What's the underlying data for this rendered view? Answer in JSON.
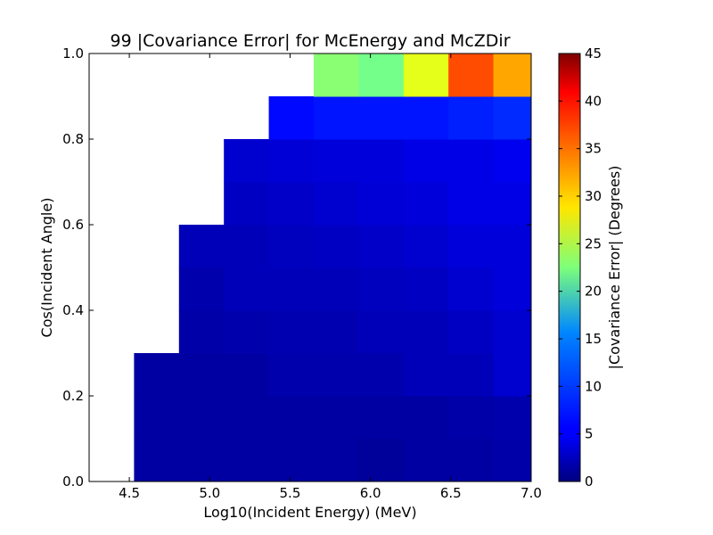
{
  "chart_data": {
    "type": "heatmap",
    "title": "99 |Covariance Error| for McEnergy and McZDir",
    "xlabel": "Log10(Incident Energy) (MeV)",
    "ylabel": "Cos(Incident Angle)",
    "colorbar_label": "|Covariance Error| (Degrees)",
    "colormap": "jet",
    "xlim": [
      4.25,
      7.0
    ],
    "ylim": [
      0.0,
      1.0
    ],
    "x_ticks": [
      "4.5",
      "5.0",
      "5.5",
      "6.0",
      "6.5",
      "7.0"
    ],
    "y_ticks": [
      "0.0",
      "0.2",
      "0.4",
      "0.6",
      "0.8",
      "1.0"
    ],
    "color_range": [
      0,
      45
    ],
    "colorbar_ticks": [
      "0",
      "5",
      "10",
      "15",
      "20",
      "25",
      "30",
      "35",
      "40",
      "45"
    ],
    "x_bin_edges": [
      4.25,
      4.5294,
      4.8088,
      5.0882,
      5.3676,
      5.6471,
      5.9265,
      6.2059,
      6.4853,
      6.7647,
      7.0
    ],
    "y_bin_edges": [
      0.0,
      0.1,
      0.2,
      0.3,
      0.4,
      0.5,
      0.6,
      0.7,
      0.8,
      0.9,
      1.0
    ],
    "values": [
      [
        null,
        1.5,
        1.5,
        1.5,
        1.5,
        1.5,
        1.2,
        1.5,
        1.5,
        1.8
      ],
      [
        null,
        1.5,
        1.5,
        1.5,
        1.5,
        1.5,
        1.5,
        1.5,
        1.8,
        2.0
      ],
      [
        null,
        1.5,
        1.5,
        1.5,
        2.0,
        2.0,
        2.0,
        2.5,
        2.5,
        3.5
      ],
      [
        null,
        null,
        1.8,
        2.0,
        2.2,
        2.2,
        2.5,
        2.5,
        3.0,
        3.5
      ],
      [
        null,
        null,
        2.0,
        2.5,
        2.5,
        2.5,
        2.8,
        3.0,
        3.5,
        4.0
      ],
      [
        null,
        null,
        2.5,
        2.5,
        2.8,
        3.0,
        3.2,
        3.5,
        4.0,
        4.0
      ],
      [
        null,
        null,
        null,
        3.0,
        3.2,
        3.5,
        3.8,
        4.0,
        4.5,
        4.5
      ],
      [
        null,
        null,
        null,
        3.5,
        3.8,
        4.0,
        4.0,
        4.5,
        4.5,
        5.0
      ],
      [
        null,
        null,
        null,
        null,
        6.0,
        6.5,
        6.5,
        6.5,
        7.0,
        7.5
      ],
      [
        null,
        null,
        null,
        null,
        null,
        23.0,
        22.0,
        27.0,
        36.0,
        32.0
      ]
    ]
  }
}
